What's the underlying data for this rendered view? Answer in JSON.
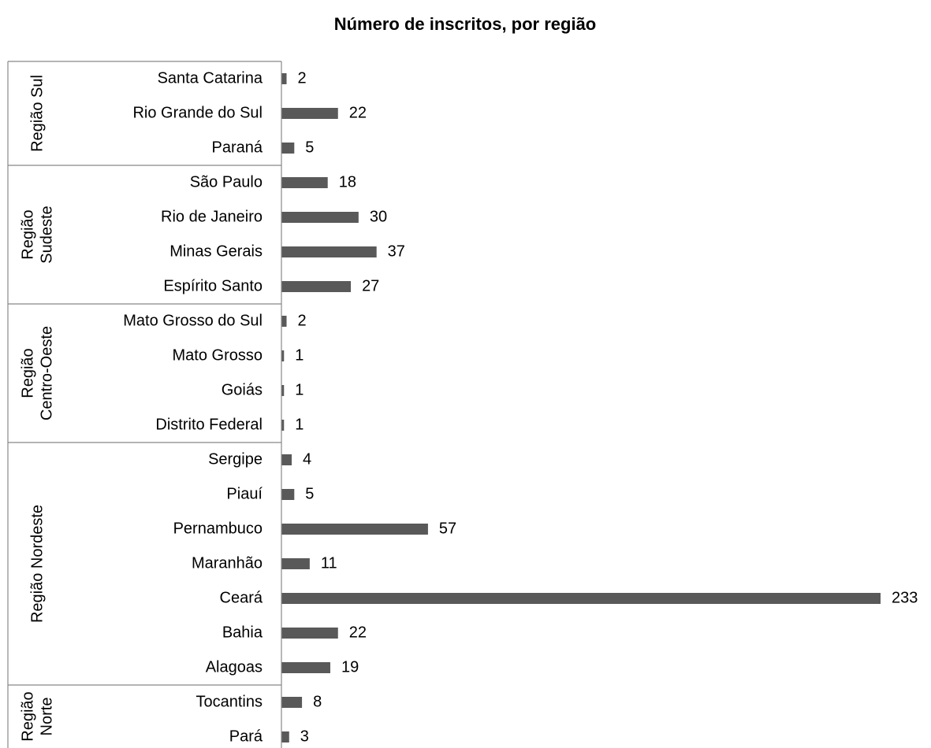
{
  "chart_data": {
    "type": "bar",
    "orientation": "horizontal",
    "title": "Número de inscritos, por região",
    "color": "#595959",
    "xlim": [
      0,
      233
    ],
    "groups": [
      {
        "label": [
          "Região Sul"
        ],
        "categories": [
          "Santa Catarina",
          "Rio Grande do Sul",
          "Paraná"
        ],
        "values": [
          2,
          22,
          5
        ]
      },
      {
        "label": [
          "Região",
          "Sudeste"
        ],
        "categories": [
          "São Paulo",
          "Rio de Janeiro",
          "Minas Gerais",
          "Espírito Santo"
        ],
        "values": [
          18,
          30,
          37,
          27
        ]
      },
      {
        "label": [
          "Região",
          "Centro-Oeste"
        ],
        "categories": [
          "Mato Grosso do Sul",
          "Mato Grosso",
          "Goiás",
          "Distrito Federal"
        ],
        "values": [
          2,
          1,
          1,
          1
        ]
      },
      {
        "label": [
          "Região Nordeste"
        ],
        "categories": [
          "Sergipe",
          "Piauí",
          "Pernambuco",
          "Maranhão",
          "Ceará",
          "Bahia",
          "Alagoas"
        ],
        "values": [
          4,
          5,
          57,
          11,
          233,
          22,
          19
        ]
      },
      {
        "label": [
          "Região",
          "Norte"
        ],
        "categories": [
          "Tocantins",
          "Pará"
        ],
        "values": [
          8,
          3
        ]
      }
    ]
  }
}
